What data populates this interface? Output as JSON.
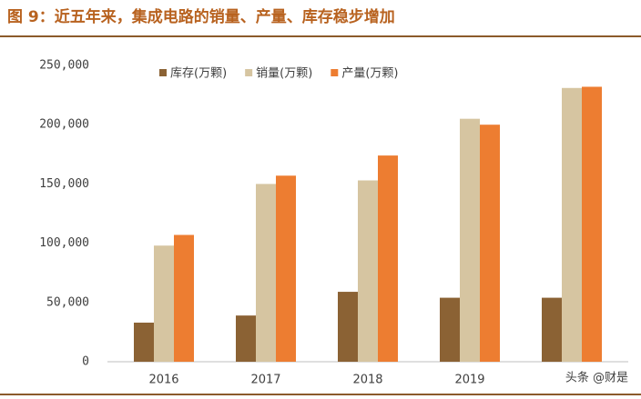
{
  "chart_data": {
    "type": "bar",
    "title": "图 9：近五年来，集成电路的销量、产量、库存稳步增加",
    "categories": [
      "2016",
      "2017",
      "2018",
      "2019",
      null
    ],
    "series": [
      {
        "name": "库存(万颗)",
        "color": "#8b6234",
        "values": [
          33000,
          39000,
          59000,
          54000,
          54000
        ]
      },
      {
        "name": "销量(万颗)",
        "color": "#d6c5a1",
        "values": [
          98000,
          150000,
          153000,
          205000,
          231000
        ]
      },
      {
        "name": "产量(万颗)",
        "color": "#ed7d31",
        "values": [
          107000,
          157000,
          174000,
          200000,
          232000
        ]
      }
    ],
    "ylim": [
      0,
      250000
    ],
    "yticks": [
      0,
      {
        "value": 50000,
        "label": "50,000"
      },
      {
        "value": 100000,
        "label": "100,000"
      },
      {
        "value": 150000,
        "label": "150,000"
      },
      {
        "value": 200000,
        "label": "200,000"
      },
      {
        "value": 250000,
        "label": "250,000"
      }
    ],
    "grid": false,
    "legend": "top",
    "watermark": "头条 @财是"
  }
}
